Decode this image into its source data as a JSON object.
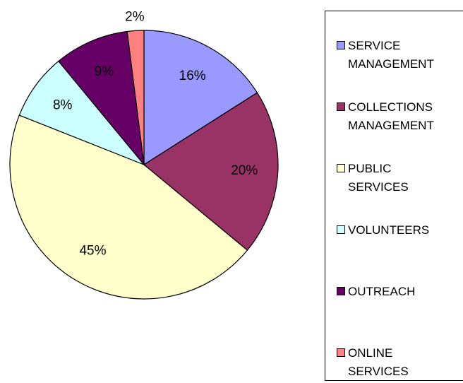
{
  "chart_data": {
    "type": "pie",
    "categories": [
      "SERVICE MANAGEMENT",
      "COLLECTIONS MANAGEMENT",
      "PUBLIC SERVICES",
      "VOLUNTEERS",
      "OUTREACH",
      "ONLINE SERVICES"
    ],
    "values": [
      16,
      20,
      45,
      8,
      9,
      2
    ],
    "value_labels": [
      "16%",
      "20%",
      "45%",
      "8%",
      "9%",
      "2%"
    ],
    "colors": [
      "#9999ff",
      "#993366",
      "#ffffcc",
      "#ccffff",
      "#660066",
      "#ff8080"
    ],
    "legend": "right"
  }
}
